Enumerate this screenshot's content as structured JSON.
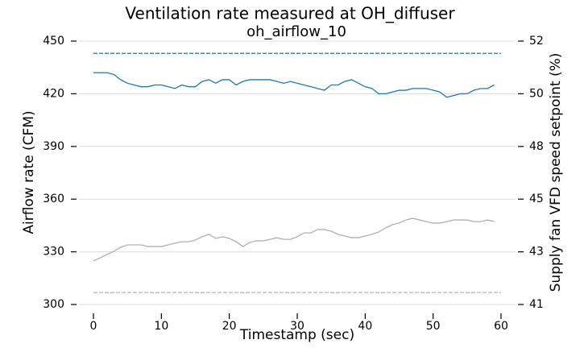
{
  "chart_data": {
    "type": "line",
    "title": "Ventilation rate measured at OH_diffuser",
    "subtitle": "oh_airflow_10",
    "x_label": "Timestamp (sec)",
    "y_label": "Airflow rate (CFM)",
    "y2_label": "Supply fan VFD speed setpoint (%)",
    "x": [
      0,
      1,
      2,
      3,
      4,
      5,
      6,
      7,
      8,
      9,
      10,
      11,
      12,
      13,
      14,
      15,
      16,
      17,
      18,
      19,
      20,
      21,
      22,
      23,
      24,
      25,
      26,
      27,
      28,
      29,
      30,
      31,
      32,
      33,
      34,
      35,
      36,
      37,
      38,
      39,
      40,
      41,
      42,
      43,
      44,
      45,
      46,
      47,
      48,
      49,
      50,
      51,
      52,
      53,
      54,
      55,
      56,
      57,
      58,
      59
    ],
    "xlim": [
      0,
      60
    ],
    "xticks": [
      0,
      10,
      20,
      30,
      40,
      50,
      60
    ],
    "ylim": [
      300,
      450
    ],
    "yticks": [
      300,
      330,
      360,
      390,
      420,
      450
    ],
    "y2lim": [
      41,
      52
    ],
    "y2ticks": [
      41,
      {
        "value": 43.2,
        "label": "43"
      },
      {
        "value": 45.4,
        "label": "45"
      },
      {
        "value": 47.6,
        "label": "48"
      },
      {
        "value": 49.8,
        "label": "50"
      },
      52
    ],
    "grid": true,
    "series": [
      {
        "color": "#1f77b4",
        "dash": false,
        "values": [
          432,
          432,
          432,
          431,
          428,
          426,
          425,
          424,
          424,
          425,
          425,
          424,
          423,
          425,
          424,
          424,
          427,
          428,
          426,
          428,
          428,
          425,
          427,
          428,
          428,
          428,
          428,
          427,
          426,
          427,
          426,
          425,
          424,
          423,
          422,
          425,
          425,
          427,
          428,
          426,
          424,
          423,
          420,
          420,
          421,
          422,
          422,
          423,
          423,
          423,
          422,
          421,
          418,
          419,
          420,
          420,
          422,
          423,
          423,
          425
        ]
      },
      {
        "color": "#1f77b4",
        "dash": true,
        "x": [
          0,
          60
        ],
        "values": [
          443,
          443
        ]
      },
      {
        "color": "#b0b0b0",
        "dash": false,
        "axis": "y2",
        "values": [
          42.82,
          42.95,
          43.09,
          43.22,
          43.39,
          43.49,
          43.49,
          43.49,
          43.42,
          43.42,
          43.42,
          43.49,
          43.56,
          43.62,
          43.62,
          43.69,
          43.83,
          43.93,
          43.76,
          43.83,
          43.76,
          43.62,
          43.42,
          43.59,
          43.66,
          43.66,
          43.72,
          43.79,
          43.72,
          43.72,
          43.83,
          43.99,
          43.99,
          44.13,
          44.13,
          44.06,
          43.93,
          43.86,
          43.79,
          43.79,
          43.86,
          43.93,
          44.03,
          44.2,
          44.33,
          44.4,
          44.53,
          44.6,
          44.53,
          44.46,
          44.4,
          44.4,
          44.46,
          44.53,
          44.53,
          44.53,
          44.46,
          44.46,
          44.53,
          44.46
        ]
      },
      {
        "color": "#b0b0b0",
        "dash": true,
        "axis": "y2",
        "x": [
          0,
          60
        ],
        "values": [
          41.5,
          41.5
        ]
      }
    ]
  }
}
